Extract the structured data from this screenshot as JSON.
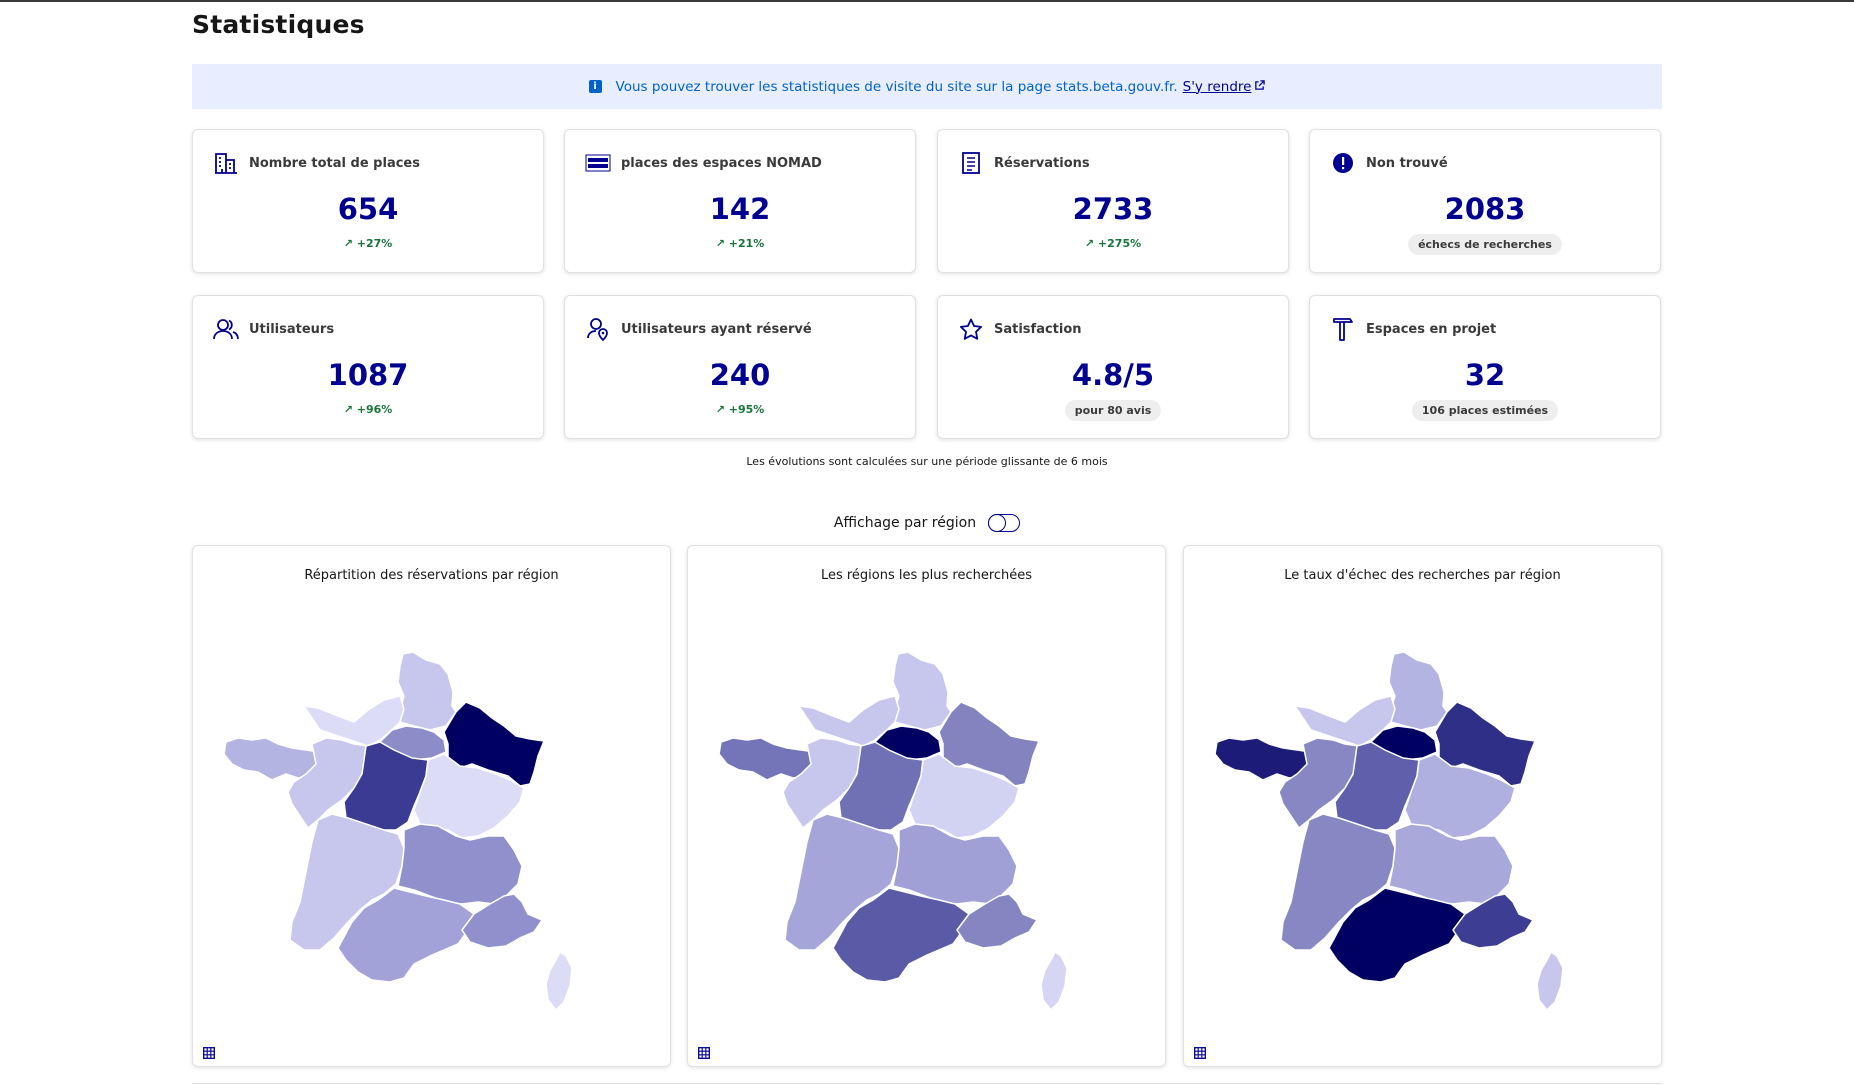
{
  "page": {
    "title": "Statistiques"
  },
  "notice": {
    "text": "Vous pouvez trouver les statistiques de visite du site sur la page stats.beta.gouv.fr.",
    "link_label": "S'y rendre"
  },
  "cards": [
    {
      "icon": "building-icon",
      "label": "Nombre total de places",
      "value": "654",
      "trend": "+27%"
    },
    {
      "icon": "nomad-logo-icon",
      "label": "places des espaces NOMAD",
      "value": "142",
      "trend": "+21%"
    },
    {
      "icon": "document-icon",
      "label": "Réservations",
      "value": "2733",
      "trend": "+275%"
    },
    {
      "icon": "error-icon",
      "label": "Non trouvé",
      "value": "2083",
      "badge": "échecs de recherches"
    },
    {
      "icon": "users-icon",
      "label": "Utilisateurs",
      "value": "1087",
      "trend": "+96%"
    },
    {
      "icon": "user-location-icon",
      "label": "Utilisateurs ayant réservé",
      "value": "240",
      "trend": "+95%"
    },
    {
      "icon": "star-icon",
      "label": "Satisfaction",
      "value": "4.8/5",
      "badge": "pour 80 avis"
    },
    {
      "icon": "hammer-icon",
      "label": "Espaces en projet",
      "value": "32",
      "badge": "106 places estimées"
    }
  ],
  "footnote": "Les évolutions sont calculées sur une période glissante de 6 mois",
  "toggle": {
    "label": "Affichage par région",
    "checked": false
  },
  "maps": [
    {
      "title": "Répartition des réservations par région",
      "colors": {
        "HDF": "#c7c7ee",
        "GE": "#000062",
        "NOR": "#dcdcf7",
        "IDF": "#8c8cc8",
        "BRE": "#b4b4e3",
        "PDL": "#c7c7ee",
        "CVL": "#3b3b93",
        "BFC": "#dcdcf7",
        "NAQ": "#c7c7ee",
        "ARA": "#9090cc",
        "OCC": "#a2a2d8",
        "PACA": "#9090cc",
        "COR": "#dcdcf7"
      }
    },
    {
      "title": "Les régions les plus recherchées",
      "colors": {
        "HDF": "#c7c7ee",
        "GE": "#8383c0",
        "NOR": "#c7c7ee",
        "IDF": "#000062",
        "BRE": "#7474b8",
        "PDL": "#c7c7ee",
        "CVL": "#7070b4",
        "BFC": "#d2d2f2",
        "NAQ": "#a5a5d9",
        "ARA": "#a0a0d6",
        "OCC": "#5a5aa6",
        "PACA": "#8585c2",
        "COR": "#d6d6f4"
      }
    },
    {
      "title": "Le taux d'échec des recherches par région",
      "colors": {
        "HDF": "#b4b4e3",
        "GE": "#2f2f88",
        "NOR": "#c7c7ee",
        "IDF": "#000062",
        "BRE": "#1c1c78",
        "PDL": "#8787c4",
        "CVL": "#5f5fab",
        "BFC": "#b0b0e0",
        "NAQ": "#8787c4",
        "ARA": "#a8a8db",
        "OCC": "#000062",
        "PACA": "#3d3d94",
        "COR": "#c7c7ee"
      }
    }
  ]
}
